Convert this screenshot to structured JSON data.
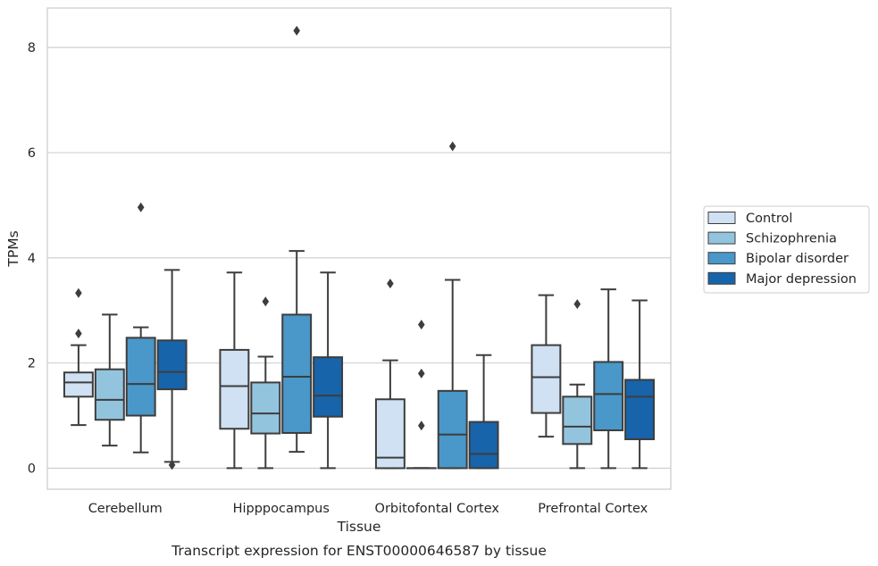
{
  "chart_data": {
    "type": "box",
    "caption": "Transcript expression for ENST00000646587 by tissue",
    "xlabel": "Tissue",
    "ylabel": "TPMs",
    "ylim": [
      -0.4,
      8.75
    ],
    "yticks": [
      0,
      2,
      4,
      6,
      8
    ],
    "grid": true,
    "legend_position": "right",
    "categories": [
      "Cerebellum",
      "Hipppocampus",
      "Orbitofontal Cortex",
      "Prefrontal Cortex"
    ],
    "series": [
      {
        "name": "Control",
        "color": "#cfe1f2",
        "boxes": [
          {
            "whisker_low": 0.82,
            "q1": 1.36,
            "median": 1.63,
            "q3": 1.82,
            "whisker_high": 2.34,
            "outliers": [
              2.56,
              3.33
            ]
          },
          {
            "whisker_low": 0.0,
            "q1": 0.75,
            "median": 1.56,
            "q3": 2.25,
            "whisker_high": 3.72,
            "outliers": []
          },
          {
            "whisker_low": 0.0,
            "q1": 0.0,
            "median": 0.2,
            "q3": 1.31,
            "whisker_high": 2.05,
            "outliers": [
              3.51
            ]
          },
          {
            "whisker_low": 0.6,
            "q1": 1.05,
            "median": 1.73,
            "q3": 2.34,
            "whisker_high": 3.29,
            "outliers": []
          }
        ]
      },
      {
        "name": "Schizophrenia",
        "color": "#93c4de",
        "boxes": [
          {
            "whisker_low": 0.43,
            "q1": 0.92,
            "median": 1.3,
            "q3": 1.88,
            "whisker_high": 2.92,
            "outliers": []
          },
          {
            "whisker_low": 0.0,
            "q1": 0.66,
            "median": 1.04,
            "q3": 1.63,
            "whisker_high": 2.12,
            "outliers": [
              3.17
            ]
          },
          {
            "whisker_low": 0.0,
            "q1": 0.0,
            "median": 0.0,
            "q3": 0.0,
            "whisker_high": 0.0,
            "outliers": [
              0.81,
              1.8,
              2.73
            ]
          },
          {
            "whisker_low": 0.0,
            "q1": 0.46,
            "median": 0.79,
            "q3": 1.36,
            "whisker_high": 1.59,
            "outliers": [
              3.12
            ]
          }
        ]
      },
      {
        "name": "Bipolar disorder",
        "color": "#4a97c9",
        "boxes": [
          {
            "whisker_low": 0.3,
            "q1": 1.0,
            "median": 1.6,
            "q3": 2.48,
            "whisker_high": 2.68,
            "outliers": [
              4.96
            ]
          },
          {
            "whisker_low": 0.31,
            "q1": 0.67,
            "median": 1.74,
            "q3": 2.92,
            "whisker_high": 4.13,
            "outliers": [
              8.32
            ]
          },
          {
            "whisker_low": 0.0,
            "q1": 0.0,
            "median": 0.64,
            "q3": 1.47,
            "whisker_high": 3.58,
            "outliers": [
              6.12
            ]
          },
          {
            "whisker_low": 0.0,
            "q1": 0.72,
            "median": 1.41,
            "q3": 2.02,
            "whisker_high": 3.4,
            "outliers": []
          }
        ]
      },
      {
        "name": "Major depression",
        "color": "#1764ab",
        "boxes": [
          {
            "whisker_low": 0.12,
            "q1": 1.5,
            "median": 1.83,
            "q3": 2.43,
            "whisker_high": 3.77,
            "outliers": [
              0.06
            ]
          },
          {
            "whisker_low": 0.0,
            "q1": 0.98,
            "median": 1.38,
            "q3": 2.11,
            "whisker_high": 3.72,
            "outliers": []
          },
          {
            "whisker_low": 0.0,
            "q1": 0.0,
            "median": 0.27,
            "q3": 0.88,
            "whisker_high": 2.15,
            "outliers": []
          },
          {
            "whisker_low": 0.0,
            "q1": 0.55,
            "median": 1.36,
            "q3": 1.68,
            "whisker_high": 3.19,
            "outliers": []
          }
        ]
      }
    ]
  }
}
